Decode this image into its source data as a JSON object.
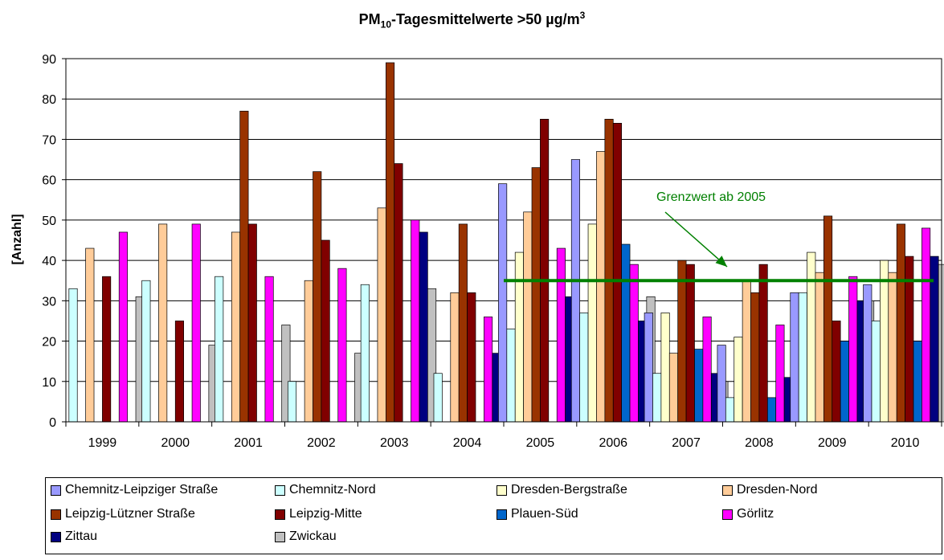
{
  "chart_data": {
    "type": "bar",
    "title_main": "PM",
    "title_sub": "10",
    "title_rest": "-Tagesmittelwerte >50 µg/m",
    "title_sup": "3",
    "ylabel": "[Anzahl]",
    "ylim": [
      0,
      90
    ],
    "yticks": [
      0,
      10,
      20,
      30,
      40,
      50,
      60,
      70,
      80,
      90
    ],
    "grid": true,
    "legend_position": "bottom",
    "categories": [
      "1999",
      "2000",
      "2001",
      "2002",
      "2003",
      "2004",
      "2005",
      "2006",
      "2007",
      "2008",
      "2009",
      "2010"
    ],
    "series": [
      {
        "name": "Chemnitz-Leipziger Straße",
        "color": "#9999FF",
        "values": [
          null,
          null,
          null,
          null,
          null,
          null,
          59,
          65,
          27,
          19,
          32,
          34
        ]
      },
      {
        "name": "Chemnitz-Nord",
        "color": "#CCFFFF",
        "values": [
          33,
          35,
          36,
          10,
          34,
          12,
          23,
          27,
          12,
          6,
          32,
          25
        ]
      },
      {
        "name": "Dresden-Bergstraße",
        "color": "#FFFFCC",
        "values": [
          null,
          null,
          null,
          null,
          null,
          null,
          42,
          49,
          27,
          21,
          42,
          40
        ]
      },
      {
        "name": "Dresden-Nord",
        "color": "#FFCC99",
        "values": [
          43,
          49,
          47,
          35,
          53,
          32,
          52,
          67,
          17,
          35,
          37,
          37
        ]
      },
      {
        "name": "Leipzig-Lützner Straße",
        "color": "#993300",
        "values": [
          null,
          null,
          77,
          62,
          89,
          49,
          63,
          75,
          40,
          32,
          51,
          49
        ]
      },
      {
        "name": "Leipzig-Mitte",
        "color": "#800000",
        "values": [
          36,
          25,
          49,
          45,
          64,
          32,
          75,
          74,
          39,
          39,
          25,
          41
        ]
      },
      {
        "name": "Plauen-Süd",
        "color": "#0066CC",
        "values": [
          null,
          null,
          null,
          null,
          null,
          null,
          null,
          44,
          18,
          6,
          20,
          20
        ]
      },
      {
        "name": "Görlitz",
        "color": "#FF00FF",
        "values": [
          47,
          49,
          36,
          38,
          50,
          26,
          43,
          39,
          26,
          24,
          36,
          48
        ]
      },
      {
        "name": "Zittau",
        "color": "#000080",
        "values": [
          null,
          null,
          null,
          null,
          47,
          17,
          31,
          25,
          12,
          11,
          30,
          41
        ]
      },
      {
        "name": "Zwickau",
        "color": "#C0C0C0",
        "values": [
          31,
          19,
          24,
          17,
          33,
          8,
          18,
          31,
          10,
          10,
          30,
          39
        ]
      }
    ],
    "reference_line": {
      "label": "Grenzwert ab 2005",
      "value": 35,
      "from": "2005",
      "to": "2010",
      "color": "#008000"
    }
  }
}
